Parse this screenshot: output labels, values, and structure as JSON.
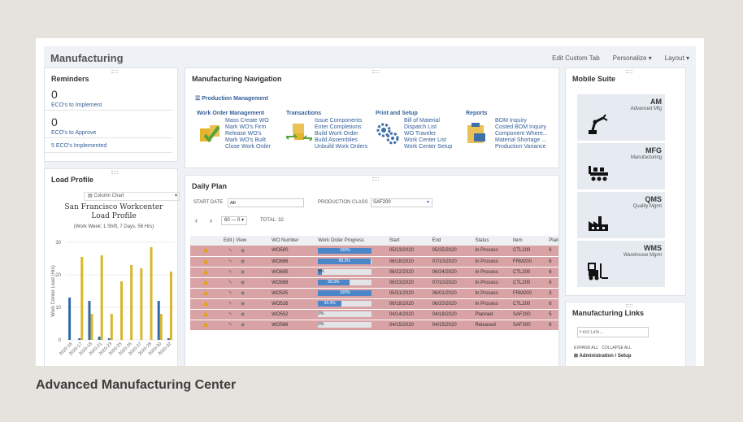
{
  "header": {
    "title": "Manufacturing",
    "edit_tab": "Edit Custom Tab",
    "personalize": "Personalize",
    "layout": "Layout"
  },
  "reminders": {
    "title": "Reminders",
    "items": [
      {
        "count": "0",
        "label": "ECO's to Implement"
      },
      {
        "count": "0",
        "label": "ECO's to Approve"
      }
    ],
    "implemented": "5 ECO's Implemented"
  },
  "nav": {
    "title": "Manufacturing Navigation",
    "menu": "Production Management",
    "sections": [
      {
        "title": "Work Order Management",
        "links": [
          "Mass Create WO",
          "Mark WO's Firm",
          "Release WO's",
          "Mark WO's Built",
          "Close Work Order"
        ]
      },
      {
        "title": "Transactions",
        "links": [
          "Issue Components",
          "Enter Completions",
          "Build Work Order",
          "Build Assemblies",
          "Unbuild Work Orders"
        ]
      },
      {
        "title": "Print and Setup",
        "links": [
          "Bill of Material",
          "Dispatch List",
          "WO Traveler",
          "Work Center List",
          "Work Center Setup"
        ]
      },
      {
        "title": "Reports",
        "links": [
          "BOM Inquiry",
          "Costed BOM Inquiry",
          "Component Where...",
          "Material Shortage ...",
          "Production Variance"
        ]
      }
    ]
  },
  "mobile": {
    "title": "Mobile Suite",
    "tiles": [
      {
        "code": "AM",
        "sub": "Advanced Mfg",
        "icon": "robot-arm-icon"
      },
      {
        "code": "MFG",
        "sub": "Manufacturing",
        "icon": "conveyor-icon"
      },
      {
        "code": "QMS",
        "sub": "Quality Mgmt",
        "icon": "factory-icon"
      },
      {
        "code": "WMS",
        "sub": "Warehouse Mgmt",
        "icon": "forklift-icon"
      }
    ]
  },
  "load": {
    "title": "Load Profile",
    "chart_select": "Column Chart",
    "chart_title": "San Francisco Workcenter Load Profile",
    "chart_sub": "(Work Week: 1 Shift, 7 Days, 56 Hrs)",
    "ylabel": "Work Center Load (Hrs)"
  },
  "chart_data": {
    "type": "bar",
    "title": "San Francisco Workcenter Load Profile",
    "subtitle": "(Work Week: 1 Shift, 7 Days, 56 Hrs)",
    "ylabel": "Work Center Load (Hrs)",
    "ylim": [
      0,
      30
    ],
    "yticks": [
      0,
      10,
      20,
      30
    ],
    "categories": [
      "2020-16",
      "2020-17",
      "2020-18",
      "2020-21",
      "2020-23",
      "2020-25",
      "2020-26",
      "2020-27",
      "2020-28",
      "2020-30",
      "2020-32"
    ],
    "series": [
      {
        "color": "#2f6aa6",
        "values": [
          13,
          0.5,
          12,
          1,
          0.5,
          0,
          0,
          0,
          0,
          12,
          0.5
        ]
      },
      {
        "color": "#d9b62c",
        "values": [
          0,
          25.5,
          8,
          26,
          8,
          18,
          23,
          22,
          28.5,
          8,
          21
        ]
      }
    ]
  },
  "plan": {
    "title": "Daily Plan",
    "start_label": "START DATE",
    "start_value": "All",
    "class_label": "PRODUCTION CLASS",
    "class_value": "SAF200",
    "page": "60 — 0",
    "total": "TOTAL: 32",
    "columns": [
      "",
      "Edit | View",
      "WO Number",
      "Work Order Progress",
      "Start",
      "End",
      "Status",
      "Item",
      "Plan Qt"
    ],
    "rows": [
      {
        "wo": "WO500",
        "pct": 100,
        "label": "100%",
        "start": "05/23/2020",
        "end": "05/25/2020",
        "status": "In Process",
        "item": "CTL200",
        "qty": "6"
      },
      {
        "wo": "WO686",
        "pct": 98.3,
        "label": "98.3%",
        "start": "06/18/2020",
        "end": "07/10/2020",
        "status": "In Process",
        "item": "FRM200",
        "qty": "6"
      },
      {
        "wo": "WO685",
        "pct": 8,
        "label": "8%",
        "start": "06/22/2020",
        "end": "06/24/2020",
        "status": "In Process",
        "item": "CTL200",
        "qty": "6"
      },
      {
        "wo": "WO698",
        "pct": 58.3,
        "label": "58.3%",
        "start": "06/23/2020",
        "end": "07/10/2020",
        "status": "In Process",
        "item": "CTL200",
        "qty": "6"
      },
      {
        "wo": "WO505",
        "pct": 100,
        "label": "100%",
        "start": "05/31/2020",
        "end": "06/01/2020",
        "status": "In Process",
        "item": "FRM200",
        "qty": "3"
      },
      {
        "wo": "WO526",
        "pct": 43.3,
        "label": "43.3%",
        "start": "06/18/2020",
        "end": "06/20/2020",
        "status": "In Process",
        "item": "CTL200",
        "qty": "6"
      },
      {
        "wo": "WO552",
        "pct": 0,
        "label": "0%",
        "start": "04/14/2020",
        "end": "04/18/2020",
        "status": "Planned",
        "item": "SAF200",
        "qty": "5"
      },
      {
        "wo": "WO586",
        "pct": 0,
        "label": "0%",
        "start": "04/15/2020",
        "end": "04/15/2020",
        "status": "Released",
        "item": "SAF200",
        "qty": "6"
      }
    ]
  },
  "mlinks": {
    "title": "Manufacturing Links",
    "placeholder": "Find Link...",
    "expand": "EXPAND ALL",
    "collapse": "COLLAPSE ALL",
    "first": "Administration / Setup"
  },
  "caption": "Advanced Manufacturing Center"
}
